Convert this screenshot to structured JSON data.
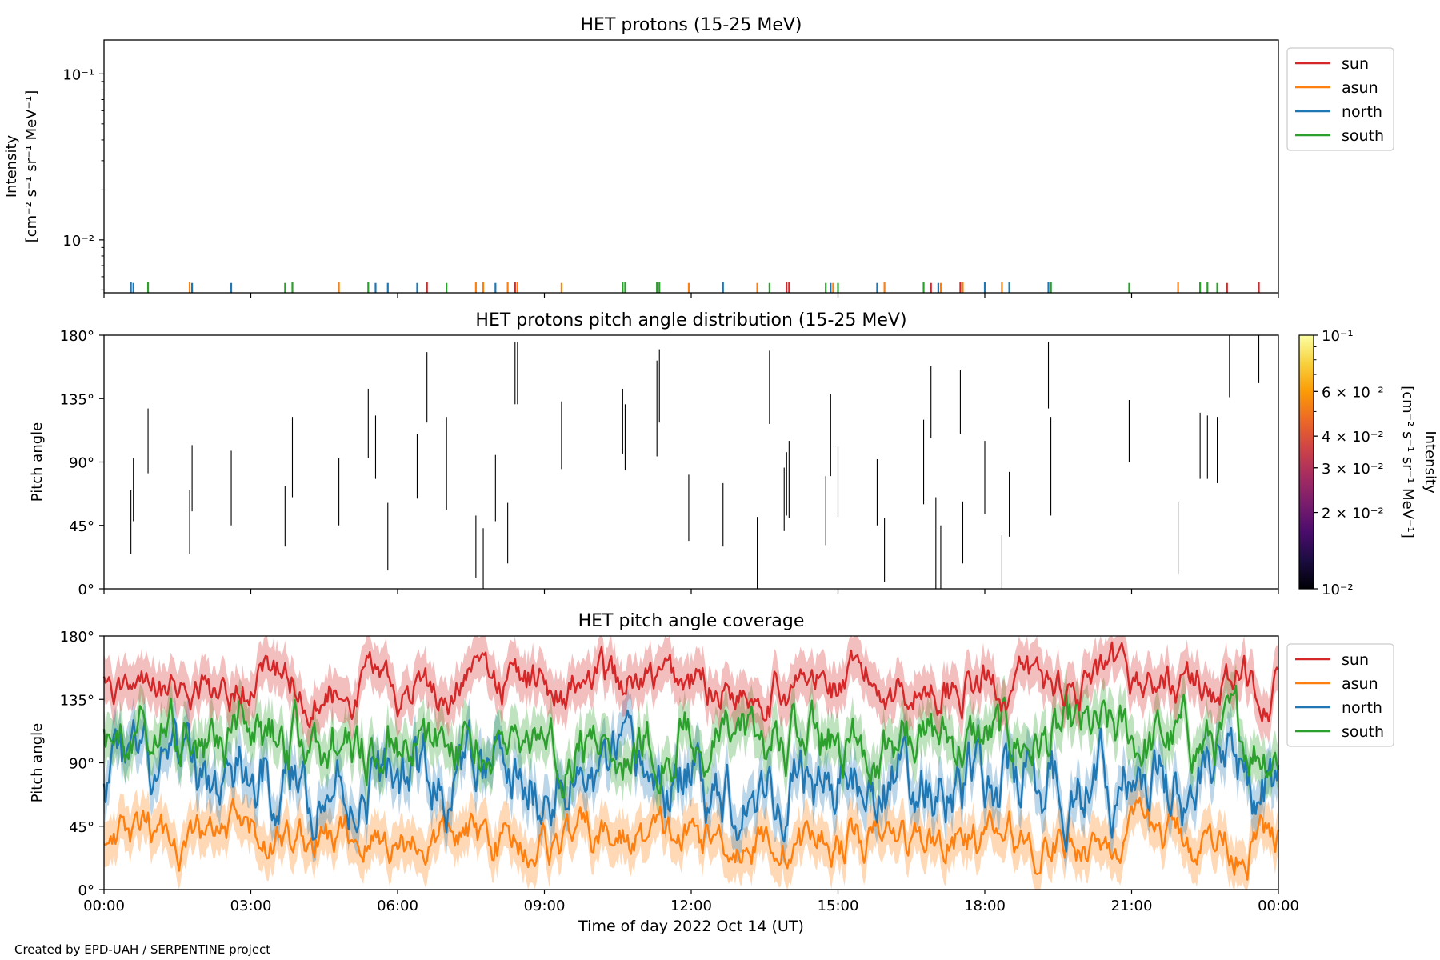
{
  "footer": {
    "credit": "Created by EPD-UAH / SERPENTINE project"
  },
  "colors": {
    "sun": "#d62728",
    "asun": "#ff7f0e",
    "north": "#1f77b4",
    "south": "#2ca02c",
    "axis": "#000000",
    "inferno": [
      "#000004",
      "#1b0c41",
      "#4a0c6b",
      "#781c6d",
      "#a52c60",
      "#cf4446",
      "#ed6925",
      "#fb9b06",
      "#f7d13d",
      "#fcffa4"
    ]
  },
  "chart_data": [
    {
      "type": "bar",
      "title": "HET protons (15-25 MeV)",
      "xlabel": "",
      "ylabel_lines": [
        "Intensity",
        "[cm⁻² s⁻¹ sr⁻¹ MeV⁻¹]"
      ],
      "yscale": "log",
      "ylim": [
        0.0048,
        0.16
      ],
      "y_tick_labels": [
        "10⁻¹",
        "10⁻²"
      ],
      "y_ticks": [
        0.1,
        0.01
      ],
      "xlim_hours": [
        0,
        24
      ],
      "legend": {
        "placement": "outside-right-top",
        "entries": [
          "sun",
          "asun",
          "north",
          "south"
        ]
      },
      "series": [
        {
          "name": "sun",
          "x_hours": [
            6.6,
            8.4,
            13.95,
            14.0,
            16.9,
            17.5,
            22.95,
            23.6
          ],
          "values": [
            0.0056,
            0.0056,
            0.0056,
            0.0056,
            0.0055,
            0.0056,
            0.0055,
            0.0056
          ]
        },
        {
          "name": "asun",
          "x_hours": [
            1.75,
            4.8,
            7.6,
            7.75,
            8.25,
            8.45,
            9.35,
            11.95,
            13.35,
            14.9,
            15.95,
            17.1,
            17.55,
            18.35,
            21.95
          ],
          "values": [
            0.0056,
            0.0056,
            0.0056,
            0.0056,
            0.0056,
            0.0056,
            0.0055,
            0.0055,
            0.0055,
            0.0055,
            0.0056,
            0.0055,
            0.0056,
            0.0056,
            0.0056
          ]
        },
        {
          "name": "north",
          "x_hours": [
            0.55,
            0.6,
            1.8,
            2.6,
            5.55,
            5.8,
            6.4,
            8.0,
            12.65,
            14.85,
            15.8,
            17.05,
            18.0,
            18.5,
            19.3,
            19.35
          ],
          "values": [
            0.0056,
            0.0055,
            0.0055,
            0.0055,
            0.0055,
            0.0055,
            0.0055,
            0.0055,
            0.0056,
            0.0055,
            0.0055,
            0.0055,
            0.0056,
            0.0056,
            0.0056,
            0.0056
          ]
        },
        {
          "name": "south",
          "x_hours": [
            0.9,
            3.7,
            3.85,
            5.4,
            7.0,
            10.6,
            10.65,
            11.3,
            11.35,
            13.6,
            14.75,
            15.0,
            16.75,
            19.35,
            20.95,
            22.4,
            22.55,
            22.75
          ],
          "values": [
            0.0056,
            0.0055,
            0.0056,
            0.0056,
            0.0055,
            0.0056,
            0.0056,
            0.0056,
            0.0056,
            0.0055,
            0.0055,
            0.0055,
            0.0056,
            0.0056,
            0.0055,
            0.0056,
            0.0056,
            0.0055
          ]
        }
      ]
    },
    {
      "type": "heatmap",
      "title": "HET protons pitch angle distribution (15-25 MeV)",
      "xlabel": "",
      "ylabel": "Pitch angle",
      "ylim": [
        0,
        180
      ],
      "y_tick_labels": [
        "0°",
        "45°",
        "90°",
        "135°",
        "180°"
      ],
      "y_ticks": [
        0,
        45,
        90,
        135,
        180
      ],
      "xlim_hours": [
        0,
        24
      ],
      "colorbar": {
        "label_lines": [
          "Intensity",
          "[cm⁻² s⁻¹ sr⁻¹ MeV⁻¹]"
        ],
        "scale": "log",
        "range": [
          0.01,
          0.1
        ],
        "tick_labels": [
          "10⁻¹",
          "6 × 10⁻²",
          "4 × 10⁻²",
          "3 × 10⁻²",
          "2 × 10⁻²",
          "10⁻²"
        ],
        "ticks": [
          0.1,
          0.06,
          0.04,
          0.03,
          0.02,
          0.01
        ]
      },
      "segments_hours_deg": [
        [
          0.55,
          25,
          70
        ],
        [
          0.6,
          48,
          93
        ],
        [
          0.9,
          82,
          128
        ],
        [
          1.75,
          25,
          70
        ],
        [
          1.8,
          55,
          102
        ],
        [
          2.6,
          45,
          98
        ],
        [
          3.7,
          30,
          73
        ],
        [
          3.85,
          65,
          122
        ],
        [
          4.8,
          45,
          93
        ],
        [
          5.4,
          93,
          142
        ],
        [
          5.55,
          78,
          123
        ],
        [
          5.8,
          13,
          61
        ],
        [
          6.4,
          64,
          110
        ],
        [
          6.6,
          118,
          168
        ],
        [
          7.0,
          56,
          122
        ],
        [
          7.6,
          8,
          52
        ],
        [
          7.75,
          0,
          43
        ],
        [
          8.0,
          48,
          95
        ],
        [
          8.25,
          18,
          61
        ],
        [
          8.4,
          131,
          175
        ],
        [
          8.45,
          131,
          175
        ],
        [
          9.35,
          85,
          133
        ],
        [
          10.6,
          96,
          142
        ],
        [
          10.65,
          84,
          131
        ],
        [
          11.3,
          94,
          162
        ],
        [
          11.35,
          118,
          170
        ],
        [
          11.95,
          34,
          81
        ],
        [
          12.65,
          30,
          75
        ],
        [
          13.35,
          0,
          51
        ],
        [
          13.6,
          117,
          169
        ],
        [
          13.9,
          41,
          86
        ],
        [
          13.95,
          52,
          97
        ],
        [
          14.0,
          50,
          105
        ],
        [
          14.75,
          31,
          80
        ],
        [
          14.85,
          80,
          138
        ],
        [
          15.0,
          51,
          101
        ],
        [
          15.8,
          45,
          92
        ],
        [
          15.95,
          5,
          50
        ],
        [
          16.75,
          60,
          120
        ],
        [
          16.9,
          107,
          158
        ],
        [
          17.0,
          0,
          65
        ],
        [
          17.1,
          0,
          45
        ],
        [
          17.5,
          110,
          155
        ],
        [
          17.55,
          18,
          62
        ],
        [
          18.0,
          53,
          105
        ],
        [
          18.35,
          0,
          38
        ],
        [
          18.5,
          37,
          83
        ],
        [
          19.3,
          128,
          175
        ],
        [
          19.35,
          52,
          122
        ],
        [
          20.95,
          90,
          134
        ],
        [
          21.95,
          10,
          62
        ],
        [
          22.4,
          78,
          125
        ],
        [
          22.55,
          78,
          123
        ],
        [
          22.75,
          75,
          122
        ],
        [
          23.0,
          136,
          180
        ],
        [
          23.6,
          146,
          180
        ]
      ]
    },
    {
      "type": "line",
      "title": "HET pitch angle coverage",
      "xlabel": "Time of day 2022 Oct 14 (UT)",
      "ylabel": "Pitch angle",
      "ylim": [
        0,
        180
      ],
      "y_tick_labels": [
        "0°",
        "45°",
        "90°",
        "135°",
        "180°"
      ],
      "y_ticks": [
        0,
        45,
        90,
        135,
        180
      ],
      "xlim_hours": [
        0,
        24
      ],
      "x_tick_labels": [
        "00:00",
        "03:00",
        "06:00",
        "09:00",
        "12:00",
        "15:00",
        "18:00",
        "21:00",
        "00:00"
      ],
      "x_ticks_hours": [
        0,
        3,
        6,
        9,
        12,
        15,
        18,
        21,
        24
      ],
      "legend": {
        "placement": "outside-right-top",
        "entries": [
          "sun",
          "asun",
          "north",
          "south"
        ]
      },
      "series": [
        {
          "name": "sun",
          "mean_deg": 145,
          "typical_range_deg": [
            105,
            180
          ]
        },
        {
          "name": "asun",
          "mean_deg": 35,
          "typical_range_deg": [
            0,
            75
          ]
        },
        {
          "name": "north",
          "mean_deg": 75,
          "typical_range_deg": [
            10,
            135
          ]
        },
        {
          "name": "south",
          "mean_deg": 105,
          "typical_range_deg": [
            55,
            160
          ]
        }
      ]
    }
  ]
}
